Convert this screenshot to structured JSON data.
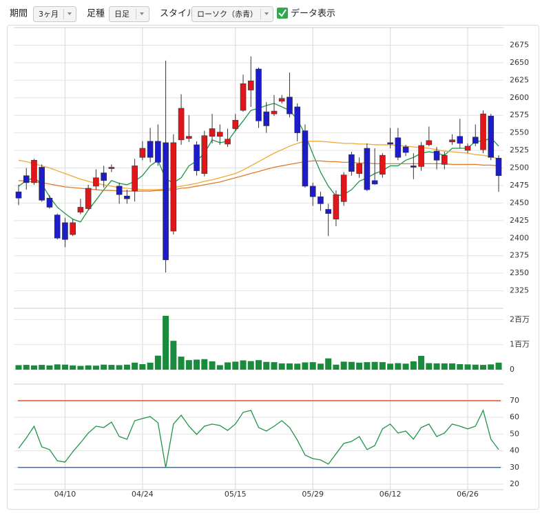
{
  "toolbar": {
    "period_label": "期間",
    "period_value": "3ヶ月",
    "bar_label": "足種",
    "bar_value": "日足",
    "style_label": "スタイル",
    "style_value": "ローソク（赤青）",
    "data_toggle": "データ表示"
  },
  "chart_data": [
    {
      "type": "candlestick",
      "ylim": [
        2300,
        2700
      ],
      "yticks": [
        2325,
        2350,
        2375,
        2400,
        2425,
        2450,
        2475,
        2500,
        2525,
        2550,
        2575,
        2600,
        2625,
        2650,
        2675
      ],
      "grid": true,
      "up_color": "#e0161b",
      "down_color": "#1c1ccc",
      "open": [
        2466,
        2489,
        2479,
        2501,
        2457,
        2433,
        2422,
        2405,
        2437,
        2442,
        2474,
        2493,
        2499,
        2474,
        2460,
        2467,
        2515,
        2538,
        2538,
        2536,
        2410,
        2540,
        2542,
        2533,
        2492,
        2545,
        2545,
        2534,
        2556,
        2582,
        2611,
        2641,
        2580,
        2577,
        2595,
        2601,
        2587,
        2553,
        2474,
        2459,
        2441,
        2427,
        2452,
        2519,
        2492,
        2528,
        2482,
        2491,
        2536,
        2543,
        2530,
        2503,
        2502,
        2533,
        2524,
        2505,
        2537,
        2545,
        2525,
        2544,
        2526,
        2574,
        2514
      ],
      "high": [
        2476,
        2500,
        2513,
        2505,
        2461,
        2435,
        2429,
        2427,
        2456,
        2476,
        2498,
        2503,
        2505,
        2479,
        2469,
        2513,
        2538,
        2557,
        2562,
        2653,
        2548,
        2605,
        2575,
        2538,
        2553,
        2577,
        2562,
        2556,
        2577,
        2633,
        2659,
        2643,
        2594,
        2604,
        2604,
        2636,
        2592,
        2562,
        2479,
        2466,
        2449,
        2468,
        2494,
        2523,
        2515,
        2535,
        2528,
        2521,
        2557,
        2557,
        2533,
        2521,
        2537,
        2559,
        2530,
        2523,
        2548,
        2570,
        2535,
        2562,
        2582,
        2577,
        2518
      ],
      "low": [
        2447,
        2469,
        2476,
        2452,
        2442,
        2398,
        2387,
        2403,
        2434,
        2440,
        2469,
        2472,
        2494,
        2449,
        2449,
        2452,
        2511,
        2508,
        2503,
        2351,
        2405,
        2533,
        2537,
        2489,
        2488,
        2535,
        2533,
        2530,
        2553,
        2580,
        2587,
        2557,
        2550,
        2574,
        2592,
        2572,
        2538,
        2472,
        2446,
        2439,
        2403,
        2417,
        2446,
        2489,
        2486,
        2467,
        2476,
        2486,
        2528,
        2511,
        2517,
        2484,
        2496,
        2531,
        2498,
        2498,
        2533,
        2528,
        2521,
        2531,
        2521,
        2511,
        2466
      ],
      "close": [
        2457,
        2479,
        2511,
        2454,
        2444,
        2400,
        2398,
        2422,
        2444,
        2471,
        2486,
        2482,
        2501,
        2462,
        2456,
        2503,
        2528,
        2515,
        2508,
        2369,
        2536,
        2585,
        2545,
        2496,
        2546,
        2556,
        2551,
        2541,
        2568,
        2620,
        2624,
        2567,
        2560,
        2581,
        2599,
        2577,
        2550,
        2474,
        2459,
        2449,
        2435,
        2462,
        2490,
        2495,
        2506,
        2469,
        2477,
        2518,
        2534,
        2515,
        2522,
        2501,
        2532,
        2539,
        2511,
        2518,
        2540,
        2535,
        2531,
        2535,
        2577,
        2515,
        2489
      ],
      "series": [
        {
          "color": "#1e9448",
          "values": [
            2474,
            2482,
            2486,
            2477,
            2459,
            2444,
            2435,
            2427,
            2423,
            2440,
            2454,
            2469,
            2482,
            2478,
            2476,
            2481,
            2489,
            2503,
            2511,
            2484,
            2479,
            2486,
            2503,
            2510,
            2521,
            2540,
            2536,
            2538,
            2553,
            2567,
            2582,
            2585,
            2589,
            2592,
            2587,
            2582,
            2569,
            2548,
            2520,
            2494,
            2474,
            2460,
            2462,
            2469,
            2481,
            2486,
            2492,
            2496,
            2503,
            2503,
            2511,
            2515,
            2521,
            2523,
            2521,
            2518,
            2528,
            2528,
            2528,
            2538,
            2538,
            2543,
            2531
          ]
        },
        {
          "color": "#f0a830",
          "values": [
            2511,
            2509,
            2506,
            2503,
            2500,
            2496,
            2492,
            2488,
            2484,
            2481,
            2478,
            2476,
            2474,
            2472,
            2471,
            2470,
            2469,
            2469,
            2469,
            2470,
            2472,
            2474,
            2476,
            2478,
            2481,
            2483,
            2486,
            2489,
            2492,
            2497,
            2503,
            2509,
            2515,
            2521,
            2526,
            2531,
            2535,
            2538,
            2538,
            2538,
            2537,
            2536,
            2535,
            2535,
            2534,
            2534,
            2533,
            2533,
            2533,
            2532,
            2531,
            2530,
            2529,
            2528,
            2526,
            2524,
            2523,
            2522,
            2521,
            2519,
            2518,
            2516,
            2513
          ]
        },
        {
          "color": "#e07a2c",
          "values": [
            2482,
            2481,
            2480,
            2479,
            2477,
            2475,
            2473,
            2472,
            2471,
            2470,
            2469,
            2468,
            2468,
            2467,
            2467,
            2467,
            2467,
            2467,
            2468,
            2468,
            2469,
            2471,
            2472,
            2474,
            2476,
            2478,
            2480,
            2483,
            2486,
            2489,
            2492,
            2495,
            2498,
            2501,
            2503,
            2505,
            2507,
            2509,
            2510,
            2510,
            2509,
            2509,
            2508,
            2508,
            2507,
            2507,
            2506,
            2506,
            2506,
            2506,
            2506,
            2506,
            2506,
            2506,
            2506,
            2506,
            2505,
            2505,
            2505,
            2505,
            2504,
            2504,
            2503
          ]
        }
      ]
    },
    {
      "type": "bar",
      "color": "#1a8a3c",
      "ylim": [
        0,
        2450000
      ],
      "yticks": [
        0,
        {
          "value": 1000000,
          "label": "1百万"
        },
        {
          "value": 2000000,
          "label": "2百万"
        }
      ],
      "grid": true,
      "values": [
        180000,
        190000,
        170000,
        190000,
        170000,
        210000,
        200000,
        170000,
        150000,
        170000,
        160000,
        200000,
        190000,
        180000,
        200000,
        280000,
        220000,
        280000,
        560000,
        2150000,
        1150000,
        520000,
        380000,
        400000,
        420000,
        330000,
        180000,
        290000,
        320000,
        370000,
        340000,
        380000,
        310000,
        300000,
        250000,
        250000,
        240000,
        290000,
        300000,
        240000,
        450000,
        200000,
        320000,
        310000,
        280000,
        300000,
        310000,
        300000,
        240000,
        260000,
        240000,
        330000,
        550000,
        260000,
        250000,
        250000,
        250000,
        220000,
        210000,
        200000,
        190000,
        210000,
        280000
      ]
    },
    {
      "type": "line",
      "color": "#1e9448",
      "ylim": [
        16.7,
        79.9
      ],
      "yticks": [
        20,
        30,
        40,
        50,
        60,
        70
      ],
      "grid": true,
      "ref_lines": [
        {
          "value": 70,
          "color": "#d9541e"
        },
        {
          "value": 30,
          "color": "#2f6fc9"
        }
      ],
      "categories": [
        null,
        null,
        null,
        null,
        null,
        null,
        "04/10",
        null,
        null,
        null,
        null,
        null,
        null,
        null,
        null,
        null,
        "04/24",
        null,
        null,
        null,
        null,
        null,
        null,
        null,
        null,
        null,
        null,
        null,
        "05/15",
        null,
        null,
        null,
        null,
        null,
        null,
        null,
        null,
        null,
        "05/29",
        null,
        null,
        null,
        null,
        null,
        null,
        null,
        null,
        null,
        "06/12",
        null,
        null,
        null,
        null,
        null,
        null,
        null,
        null,
        null,
        "06/26",
        null,
        null,
        null,
        null
      ],
      "values": [
        41.5,
        47.7,
        54.7,
        42.3,
        40.7,
        34.0,
        33.2,
        39.4,
        44.8,
        50.6,
        54.7,
        53.9,
        57.2,
        48.5,
        46.9,
        58.0,
        59.3,
        60.5,
        56.8,
        29.9,
        56.0,
        61.3,
        54.7,
        49.8,
        54.7,
        56.0,
        55.1,
        52.2,
        56.0,
        63.0,
        64.2,
        53.9,
        51.8,
        54.7,
        58.0,
        53.9,
        46.4,
        37.4,
        35.3,
        34.5,
        32.0,
        38.2,
        44.4,
        45.6,
        48.5,
        40.7,
        43.1,
        53.1,
        56.0,
        50.6,
        51.8,
        46.9,
        53.9,
        56.0,
        48.5,
        50.6,
        56.0,
        54.7,
        53.1,
        54.7,
        64.2,
        46.9,
        40.7
      ]
    }
  ]
}
